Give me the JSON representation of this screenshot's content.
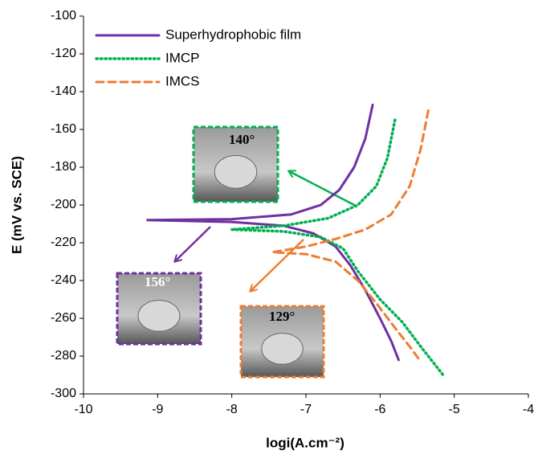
{
  "chart_data": {
    "type": "line",
    "xlabel": "logi(A.cm⁻²)",
    "ylabel": "E (mV vs. SCE)",
    "xlim": [
      -10,
      -4
    ],
    "xticks": [
      -10,
      -9,
      -8,
      -7,
      -6,
      -5,
      -4
    ],
    "ylim": [
      -300,
      -100
    ],
    "yticks": [
      -300,
      -280,
      -260,
      -240,
      -220,
      -200,
      -180,
      -160,
      -140,
      -120,
      -100
    ],
    "grid": false,
    "legend": "upper left",
    "series": [
      {
        "name": "Superhydrophobic film",
        "color": "#7030a0",
        "style": "solid",
        "x": [
          -6.1,
          -6.2,
          -6.35,
          -6.55,
          -6.8,
          -7.2,
          -8,
          -9.15,
          -8,
          -7.3,
          -6.9,
          -6.6,
          -6.4,
          -6.2,
          -6.0,
          -5.85,
          -5.75
        ],
        "y": [
          -147,
          -165,
          -180,
          -192,
          -200,
          -205,
          -207.5,
          -208,
          -209,
          -211,
          -215,
          -222,
          -232,
          -245,
          -260,
          -272,
          -282
        ]
      },
      {
        "name": "IMCP",
        "color": "#00b050",
        "style": "dotted",
        "x": [
          -5.8,
          -5.9,
          -6.05,
          -6.3,
          -6.7,
          -7.3,
          -8.0,
          -7.3,
          -6.8,
          -6.5,
          -6.3,
          -6.0,
          -5.7,
          -5.45,
          -5.15
        ],
        "y": [
          -155,
          -175,
          -190,
          -200,
          -207,
          -211,
          -213,
          -214,
          -217,
          -223,
          -235,
          -250,
          -262,
          -275,
          -290
        ]
      },
      {
        "name": "IMCS",
        "color": "#ed7d31",
        "style": "dashed",
        "x": [
          -5.35,
          -5.45,
          -5.6,
          -5.85,
          -6.2,
          -6.6,
          -7.0,
          -7.45,
          -7.0,
          -6.6,
          -6.3,
          -6.05,
          -5.8,
          -5.6,
          -5.45
        ],
        "y": [
          -150,
          -170,
          -190,
          -205,
          -213,
          -218,
          -222,
          -225,
          -226,
          -230,
          -240,
          -252,
          -265,
          -275,
          -283
        ]
      }
    ],
    "annotations": [
      {
        "text": "140°",
        "color": "#00b050"
      },
      {
        "text": "156°",
        "color": "#7030a0"
      },
      {
        "text": "129°",
        "color": "#ed7d31"
      }
    ]
  }
}
